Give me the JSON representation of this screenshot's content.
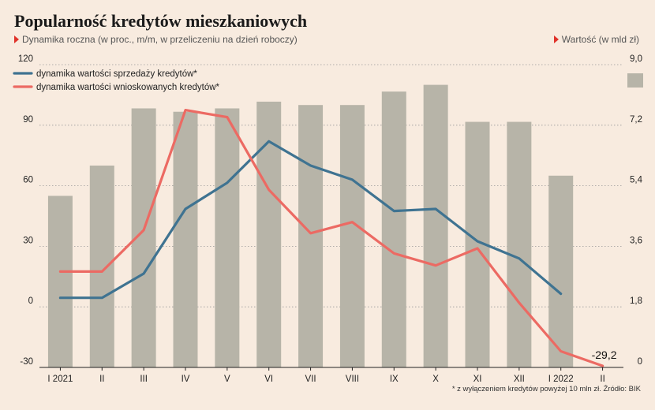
{
  "header": {
    "title": "Popularność kredytów mieszkaniowych",
    "subtitle": "Dynamika roczna (w proc., m/m, w przeliczeniu na dzień roboczy)",
    "subtitle_right": "Wartość (w mld zł)"
  },
  "footnote": "* z wyłączeniem kredytów powyżej 10 mln zł. Źródło: BIK",
  "colors": {
    "background": "#f8ebdf",
    "bars": "#b7b4a8",
    "series_sales": "#3f7391",
    "series_applications": "#ec6a63",
    "accent": "#e0322a"
  },
  "chart_data": {
    "type": "bar+line",
    "categories": [
      "I 2021",
      "II",
      "III",
      "IV",
      "V",
      "VI",
      "VII",
      "VIII",
      "IX",
      "X",
      "XI",
      "XII",
      "I 2022",
      "II"
    ],
    "left_axis": {
      "ylim": [
        -30,
        120
      ],
      "ticks": [
        "-30",
        "0",
        "30",
        "60",
        "90",
        "120"
      ]
    },
    "right_axis": {
      "ylim": [
        0,
        9.0
      ],
      "ticks": [
        "0",
        "1,8",
        "3,6",
        "5,4",
        "7,2",
        "9,0"
      ]
    },
    "bars": {
      "axis": "right",
      "values": [
        5.1,
        6.0,
        7.7,
        7.6,
        7.7,
        7.9,
        7.8,
        7.8,
        8.2,
        8.4,
        7.3,
        7.3,
        5.7,
        null
      ]
    },
    "series": [
      {
        "name": "dynamika wartości sprzedaży kredytów*",
        "axis": "left",
        "values": [
          4.5,
          4.5,
          16.5,
          48.5,
          61.5,
          82,
          70,
          63,
          47.5,
          48.5,
          32.5,
          24,
          6.5,
          null
        ]
      },
      {
        "name": "dynamika wartości wnioskowanych kredytów*",
        "axis": "left",
        "values": [
          17.5,
          17.5,
          38,
          97.5,
          94,
          58,
          36.5,
          42,
          26.5,
          20.5,
          29,
          2,
          -22,
          -29.2
        ]
      }
    ],
    "annotations": [
      {
        "text": "-29,2",
        "category": "II",
        "value": -29.2
      }
    ]
  }
}
